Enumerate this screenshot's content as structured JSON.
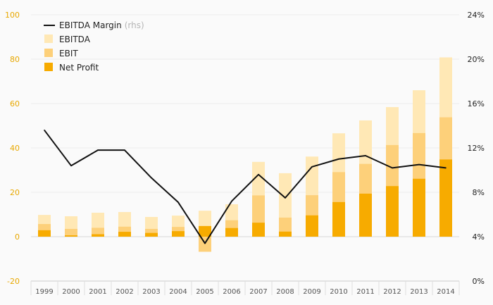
{
  "chart_data": {
    "type": "bar",
    "stacking": "overlapping",
    "categories": [
      "1999",
      "2000",
      "2001",
      "2002",
      "2003",
      "2004",
      "2005",
      "2006",
      "2007",
      "2008",
      "2009",
      "2010",
      "2011",
      "2012",
      "2013",
      "2014"
    ],
    "series": [
      {
        "name": "EBITDA",
        "values": [
          9.8,
          9.2,
          10.8,
          11.1,
          8.9,
          9.5,
          11.7,
          14.6,
          33.7,
          28.6,
          36.1,
          46.6,
          52.4,
          58.4,
          66.0,
          80.8
        ],
        "color": "#ffe8b5"
      },
      {
        "name": "EBIT",
        "values": [
          5.7,
          3.5,
          4.0,
          4.5,
          3.5,
          4.4,
          -6.8,
          7.4,
          18.6,
          8.6,
          18.7,
          29.1,
          32.8,
          41.3,
          46.7,
          53.8
        ],
        "color": "#fdd07a"
      },
      {
        "name": "Net Profit",
        "values": [
          2.9,
          0.6,
          1.1,
          2.2,
          1.7,
          2.5,
          4.8,
          3.9,
          6.3,
          2.3,
          9.6,
          15.6,
          19.4,
          22.8,
          26.1,
          34.8
        ],
        "color": "#f7ab00"
      },
      {
        "name": "EBITDA Margin",
        "axis": "rhs",
        "type": "line",
        "values": [
          13.6,
          10.4,
          11.8,
          11.8,
          9.3,
          7.1,
          3.4,
          7.2,
          9.6,
          7.5,
          10.3,
          11.0,
          11.3,
          10.2,
          10.5,
          10.2
        ],
        "color": "#111111"
      }
    ],
    "legend": {
      "placement": "top-left",
      "margin_label": "EBITDA Margin",
      "margin_suffix": "(rhs)",
      "ebitda_label": "EBITDA",
      "ebit_label": "EBIT",
      "net_label": "Net Profit"
    },
    "y_left": {
      "ticks": [
        "100",
        "80",
        "60",
        "40",
        "20",
        "0",
        "-20"
      ],
      "range": [
        -20,
        100
      ]
    },
    "y_right": {
      "ticks": [
        "24%",
        "20%",
        "16%",
        "12%",
        "8%",
        "4%",
        "0%"
      ],
      "range": [
        0,
        24
      ]
    },
    "grid": true
  }
}
